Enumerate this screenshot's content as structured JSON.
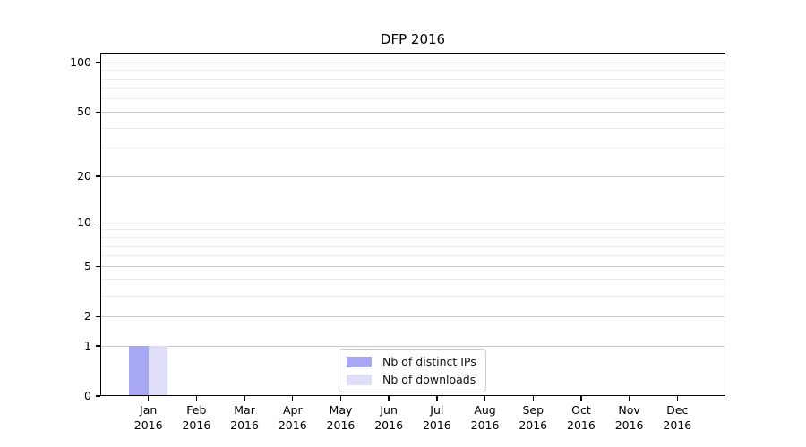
{
  "chart_data": {
    "type": "bar",
    "title": "DFP 2016",
    "categories": [
      {
        "month": "Jan",
        "year": "2016"
      },
      {
        "month": "Feb",
        "year": "2016"
      },
      {
        "month": "Mar",
        "year": "2016"
      },
      {
        "month": "Apr",
        "year": "2016"
      },
      {
        "month": "May",
        "year": "2016"
      },
      {
        "month": "Jun",
        "year": "2016"
      },
      {
        "month": "Jul",
        "year": "2016"
      },
      {
        "month": "Aug",
        "year": "2016"
      },
      {
        "month": "Sep",
        "year": "2016"
      },
      {
        "month": "Oct",
        "year": "2016"
      },
      {
        "month": "Nov",
        "year": "2016"
      },
      {
        "month": "Dec",
        "year": "2016"
      }
    ],
    "series": [
      {
        "name": "Nb of distinct IPs",
        "color": "#a7a7f3",
        "values": [
          1,
          0,
          0,
          0,
          0,
          0,
          0,
          0,
          0,
          0,
          0,
          0
        ]
      },
      {
        "name": "Nb of downloads",
        "color": "#dedef9",
        "values": [
          1,
          0,
          0,
          0,
          0,
          0,
          0,
          0,
          0,
          0,
          0,
          0
        ]
      }
    ],
    "y_axis": {
      "scale": "log1p",
      "major_ticks": [
        0,
        1,
        2,
        5,
        10,
        20,
        50,
        100
      ],
      "minor_gridlines": [
        3,
        4,
        6,
        7,
        8,
        9,
        30,
        40,
        60,
        70,
        80,
        90
      ],
      "top_value": 115,
      "ylim": [
        0,
        115
      ]
    },
    "grid": true,
    "legend_position": "lower center",
    "colors": {
      "major_grid": "#c9c9c9",
      "minor_grid": "#ececec",
      "spine": "#000000"
    }
  }
}
